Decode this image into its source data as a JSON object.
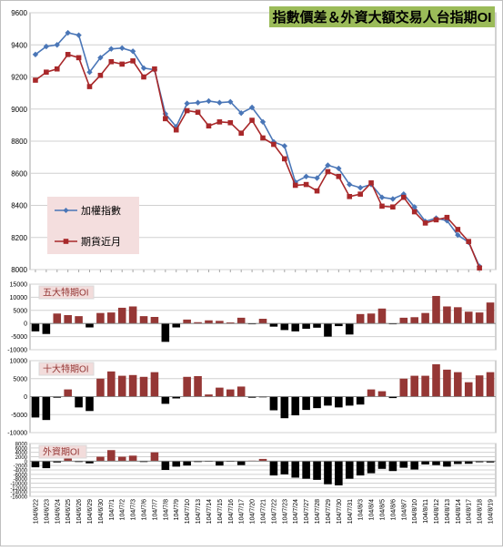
{
  "colors": {
    "index_line": "#4A76B7",
    "futures_line": "#A8282A",
    "bar_positive": "#953735",
    "bar_negative": "#000000",
    "title_bg": "#9BBB59",
    "legend_bg": "#F4DEDE",
    "panel_label_bg": "#F2DCDB",
    "panel_label_text": "#943634",
    "grid": "#D0D0D0"
  },
  "chart_data": [
    {
      "type": "line",
      "title": "指數價差＆外資大額交易人台指期OI",
      "categories": [
        "104/6/22",
        "104/6/23",
        "104/6/24",
        "104/6/25",
        "104/6/26",
        "104/6/29",
        "104/6/30",
        "104/7/1",
        "104/7/2",
        "104/7/3",
        "104/7/6",
        "104/7/7",
        "104/7/8",
        "104/7/9",
        "104/7/10",
        "104/7/13",
        "104/7/14",
        "104/7/15",
        "104/7/16",
        "104/7/17",
        "104/7/20",
        "104/7/21",
        "104/7/22",
        "104/7/23",
        "104/7/24",
        "104/7/27",
        "104/7/28",
        "104/7/29",
        "104/7/30",
        "104/7/31",
        "104/8/3",
        "104/8/4",
        "104/8/5",
        "104/8/6",
        "104/8/7",
        "104/8/10",
        "104/8/11",
        "104/8/12",
        "104/8/13",
        "104/8/14",
        "104/8/17",
        "104/8/18",
        "104/8/19"
      ],
      "tick_labels": [
        "104/6/22",
        "104/6/23",
        "104/6/24",
        "104/6/25",
        "104/6/26",
        "104/6/29",
        "104/6/30",
        "104/7/1",
        "104/7/2",
        "104/7/3",
        "104/7/6",
        "104/7/7",
        "104/7/8",
        "104/7/9",
        "104/7/10",
        "104/7/13",
        "104/7/14",
        "104/7/15",
        "104/7/16",
        "104/7/17",
        "104/7/20",
        "104/7/21",
        "104/7/22",
        "104/7/23",
        "104/7/24",
        "104/7/27",
        "104/7/28",
        "104/7/29",
        "104/7/30",
        "104/7/31",
        "104/8/3",
        "104/8/4",
        "104/8/5",
        "104/8/6",
        "104/8/7",
        "104/8/10",
        "104/8/11",
        "104/8/12",
        "104/8/13",
        "104/8/14",
        "104/8/17",
        "104/8/18",
        "104/8/19"
      ],
      "series": [
        {
          "name": "加權指數",
          "values": [
            9340,
            9390,
            9400,
            9475,
            9460,
            9230,
            9320,
            9375,
            9380,
            9360,
            9255,
            9245,
            8970,
            8890,
            9035,
            9040,
            9050,
            9040,
            9045,
            8975,
            9010,
            8920,
            8795,
            8770,
            8545,
            8580,
            8570,
            8650,
            8630,
            8530,
            8510,
            8530,
            8450,
            8440,
            8470,
            8390,
            8300,
            8320,
            8305,
            8215,
            8170,
            8020,
            null
          ]
        },
        {
          "name": "期貨近月",
          "values": [
            9180,
            9230,
            9250,
            9340,
            9320,
            9140,
            9210,
            9295,
            9280,
            9300,
            9200,
            9250,
            8940,
            8870,
            8990,
            8980,
            8895,
            8920,
            8915,
            8850,
            8930,
            8820,
            8780,
            8690,
            8525,
            8530,
            8490,
            8610,
            8580,
            8455,
            8470,
            8540,
            8395,
            8390,
            8450,
            8360,
            8290,
            8310,
            8325,
            8250,
            8175,
            8010,
            null
          ]
        }
      ],
      "ylim": [
        8000,
        9600
      ],
      "yticks": [
        "9600",
        "9400",
        "9200",
        "9000",
        "8800",
        "8600",
        "8400",
        "8200",
        "8000"
      ],
      "legend": "left-bottom",
      "grid": true
    },
    {
      "type": "bar",
      "title": "五大特期OI",
      "values": [
        -3000,
        -4000,
        3800,
        3200,
        2800,
        -1500,
        4000,
        4200,
        6000,
        6500,
        2800,
        2500,
        -7000,
        -1500,
        1500,
        500,
        1200,
        1000,
        400,
        2200,
        -300,
        1800,
        -1200,
        -2500,
        -3000,
        -2000,
        -1600,
        -5000,
        -1000,
        -4200,
        3600,
        3800,
        5700,
        -300,
        2200,
        2400,
        4000,
        10500,
        6500,
        6200,
        4500,
        4200,
        8000
      ],
      "ylim": [
        -10000,
        15000
      ],
      "yticks": [
        "15000",
        "10000",
        "5000",
        "0",
        "-5000",
        "-10000"
      ],
      "grid": true
    },
    {
      "type": "bar",
      "title": "十大特期OI",
      "values": [
        -5800,
        -6500,
        -300,
        2000,
        -3000,
        -4000,
        5000,
        7000,
        5800,
        6000,
        5500,
        6800,
        -2000,
        -500,
        5500,
        5700,
        600,
        2500,
        2000,
        2800,
        -300,
        -200,
        -3800,
        -6000,
        -5200,
        -3700,
        -3200,
        -2500,
        -3000,
        -2500,
        -2200,
        2000,
        1500,
        -400,
        5000,
        5800,
        5800,
        9000,
        7500,
        6800,
        4000,
        5900,
        6800
      ],
      "ylim": [
        -10000,
        10000
      ],
      "yticks": [
        "10000",
        "5000",
        "0",
        "-5000",
        "-10000"
      ],
      "grid": true
    },
    {
      "type": "bar",
      "title": "外資期OI",
      "values": [
        -2800,
        -3200,
        -600,
        1200,
        -400,
        -1000,
        2000,
        5000,
        2000,
        2500,
        -400,
        4000,
        -4000,
        -2500,
        -2000,
        -400,
        -200,
        -2000,
        -200,
        -1800,
        200,
        1000,
        -6500,
        -6000,
        -7500,
        -8000,
        -8500,
        -10500,
        -11000,
        -8000,
        -6500,
        -5500,
        -3500,
        -4500,
        -3000,
        -3800,
        -1500,
        -1800,
        -2500,
        -1300,
        -1200,
        -500,
        -600
      ],
      "ylim": [
        -16000,
        8000
      ],
      "yticks": [
        "8000",
        "6000",
        "4000",
        "2000",
        "0",
        "-2000",
        "-4000",
        "-6000",
        "-8000",
        "-10000",
        "-12000",
        "-14000",
        "-16000"
      ],
      "grid": true
    }
  ]
}
